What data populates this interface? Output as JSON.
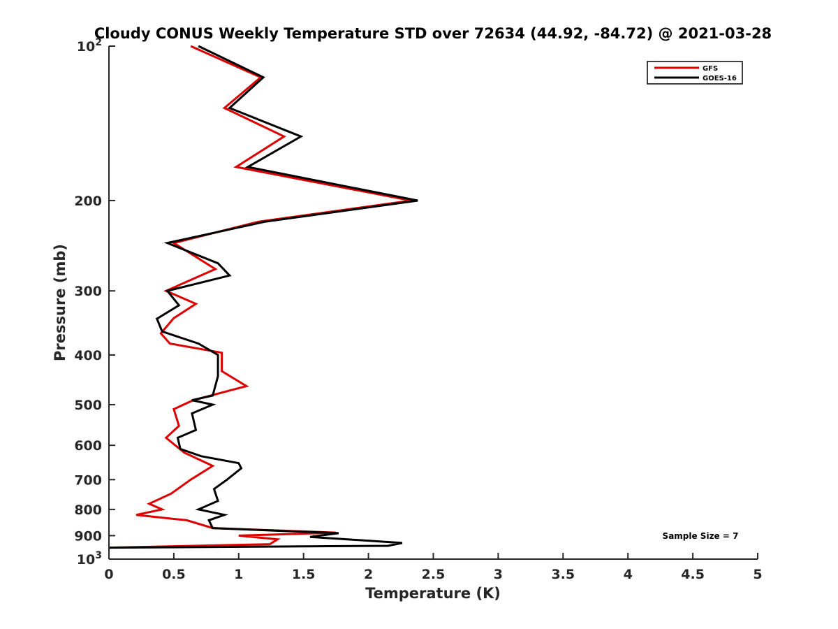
{
  "chart_data": {
    "type": "line",
    "title": "Cloudy CONUS Weekly Temperature STD over 72634 (44.92, -84.72) @ 2021-03-28",
    "xlabel": "Temperature (K)",
    "ylabel": "Pressure (mb)",
    "xlim": [
      0,
      5
    ],
    "ylim": [
      100,
      1000
    ],
    "y_scale": "log",
    "y_reversed": true,
    "x_ticks": [
      {
        "value": 0,
        "label": "0"
      },
      {
        "value": 0.5,
        "label": "0.5"
      },
      {
        "value": 1,
        "label": "1"
      },
      {
        "value": 1.5,
        "label": "1.5"
      },
      {
        "value": 2,
        "label": "2"
      },
      {
        "value": 2.5,
        "label": "2.5"
      },
      {
        "value": 3,
        "label": "3"
      },
      {
        "value": 3.5,
        "label": "3.5"
      },
      {
        "value": 4,
        "label": "4"
      },
      {
        "value": 4.5,
        "label": "4.5"
      },
      {
        "value": 5,
        "label": "5"
      }
    ],
    "y_ticks": [
      {
        "value": 100,
        "base": "10",
        "exp": "2"
      },
      {
        "value": 200,
        "label": "200"
      },
      {
        "value": 300,
        "label": "300"
      },
      {
        "value": 400,
        "label": "400"
      },
      {
        "value": 500,
        "label": "500"
      },
      {
        "value": 600,
        "label": "600"
      },
      {
        "value": 700,
        "label": "700"
      },
      {
        "value": 800,
        "label": "800"
      },
      {
        "value": 900,
        "label": "900"
      },
      {
        "value": 1000,
        "base": "10",
        "exp": "3"
      }
    ],
    "grid": false,
    "legend_position": "top-right",
    "annotation": "Sample Size = 7",
    "series": [
      {
        "name": "GFS",
        "color": "#dd0000",
        "points": [
          [
            0.63,
            100
          ],
          [
            1.17,
            115
          ],
          [
            0.89,
            132
          ],
          [
            1.35,
            150
          ],
          [
            0.98,
            172
          ],
          [
            2.33,
            200
          ],
          [
            1.15,
            220
          ],
          [
            0.5,
            242
          ],
          [
            0.82,
            272
          ],
          [
            0.44,
            300
          ],
          [
            0.67,
            318
          ],
          [
            0.5,
            339
          ],
          [
            0.4,
            363
          ],
          [
            0.47,
            380
          ],
          [
            0.87,
            396
          ],
          [
            0.87,
            430
          ],
          [
            1.06,
            460
          ],
          [
            0.65,
            490
          ],
          [
            0.5,
            510
          ],
          [
            0.54,
            550
          ],
          [
            0.44,
            580
          ],
          [
            0.58,
            620
          ],
          [
            0.8,
            658
          ],
          [
            0.63,
            700
          ],
          [
            0.48,
            745
          ],
          [
            0.31,
            780
          ],
          [
            0.41,
            800
          ],
          [
            0.21,
            820
          ],
          [
            0.6,
            840
          ],
          [
            0.8,
            870
          ],
          [
            1.75,
            888
          ],
          [
            1.0,
            900
          ],
          [
            1.3,
            915
          ],
          [
            1.24,
            935
          ],
          [
            0.0,
            950
          ]
        ]
      },
      {
        "name": "GOES-16",
        "color": "#000000",
        "points": [
          [
            0.69,
            100
          ],
          [
            1.19,
            115
          ],
          [
            0.93,
            132
          ],
          [
            1.48,
            150
          ],
          [
            1.07,
            172
          ],
          [
            2.38,
            200
          ],
          [
            1.2,
            220
          ],
          [
            0.45,
            242
          ],
          [
            0.84,
            265
          ],
          [
            0.93,
            280
          ],
          [
            0.45,
            300
          ],
          [
            0.54,
            320
          ],
          [
            0.37,
            340
          ],
          [
            0.41,
            360
          ],
          [
            0.69,
            380
          ],
          [
            0.84,
            400
          ],
          [
            0.84,
            440
          ],
          [
            0.8,
            480
          ],
          [
            0.64,
            490
          ],
          [
            0.8,
            500
          ],
          [
            0.64,
            520
          ],
          [
            0.67,
            560
          ],
          [
            0.53,
            580
          ],
          [
            0.55,
            610
          ],
          [
            0.71,
            630
          ],
          [
            1.0,
            650
          ],
          [
            1.02,
            665
          ],
          [
            0.91,
            700
          ],
          [
            0.81,
            730
          ],
          [
            0.84,
            770
          ],
          [
            0.69,
            800
          ],
          [
            0.89,
            820
          ],
          [
            0.77,
            840
          ],
          [
            0.8,
            870
          ],
          [
            1.77,
            890
          ],
          [
            1.55,
            905
          ],
          [
            2.26,
            930
          ],
          [
            2.15,
            942
          ],
          [
            0.0,
            950
          ]
        ]
      }
    ]
  }
}
